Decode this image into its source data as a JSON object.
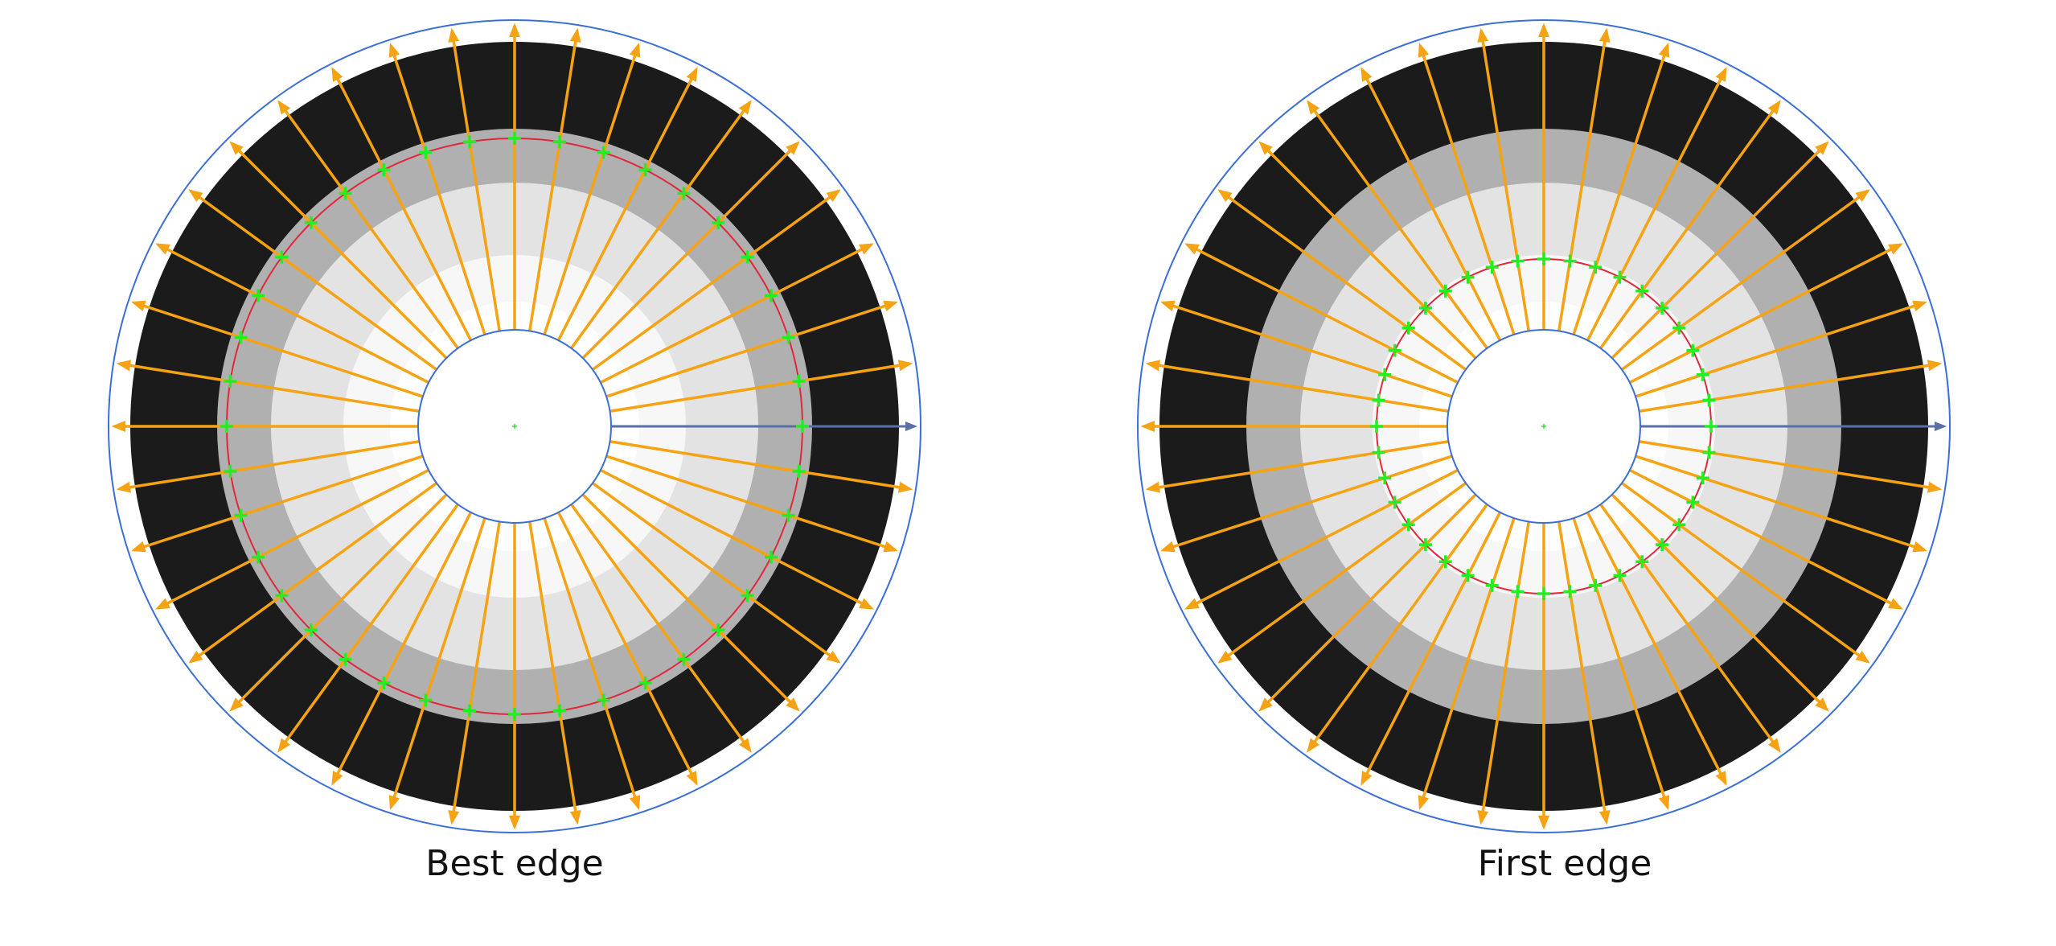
{
  "panels": [
    {
      "caption": "Best edge",
      "mode": "best"
    },
    {
      "caption": "First edge",
      "mode": "first"
    }
  ],
  "ray_count": 40,
  "colors": {
    "background": "#ffffff",
    "outer_circle": "#3b6fd6",
    "inner_circle": "#3b6fd6",
    "ray": "#f5a213",
    "horizontal_ray": "#5a6fa8",
    "edge_marker": "#22ee22",
    "fitted_circle": "#e0283c",
    "ring_black": "#1b1b1b",
    "ring_dark_gray": "#b0b0b0",
    "ring_light_gray": "#e3e3e3",
    "ring_white": "#f7f7f7",
    "caption_text": "#111111"
  }
}
